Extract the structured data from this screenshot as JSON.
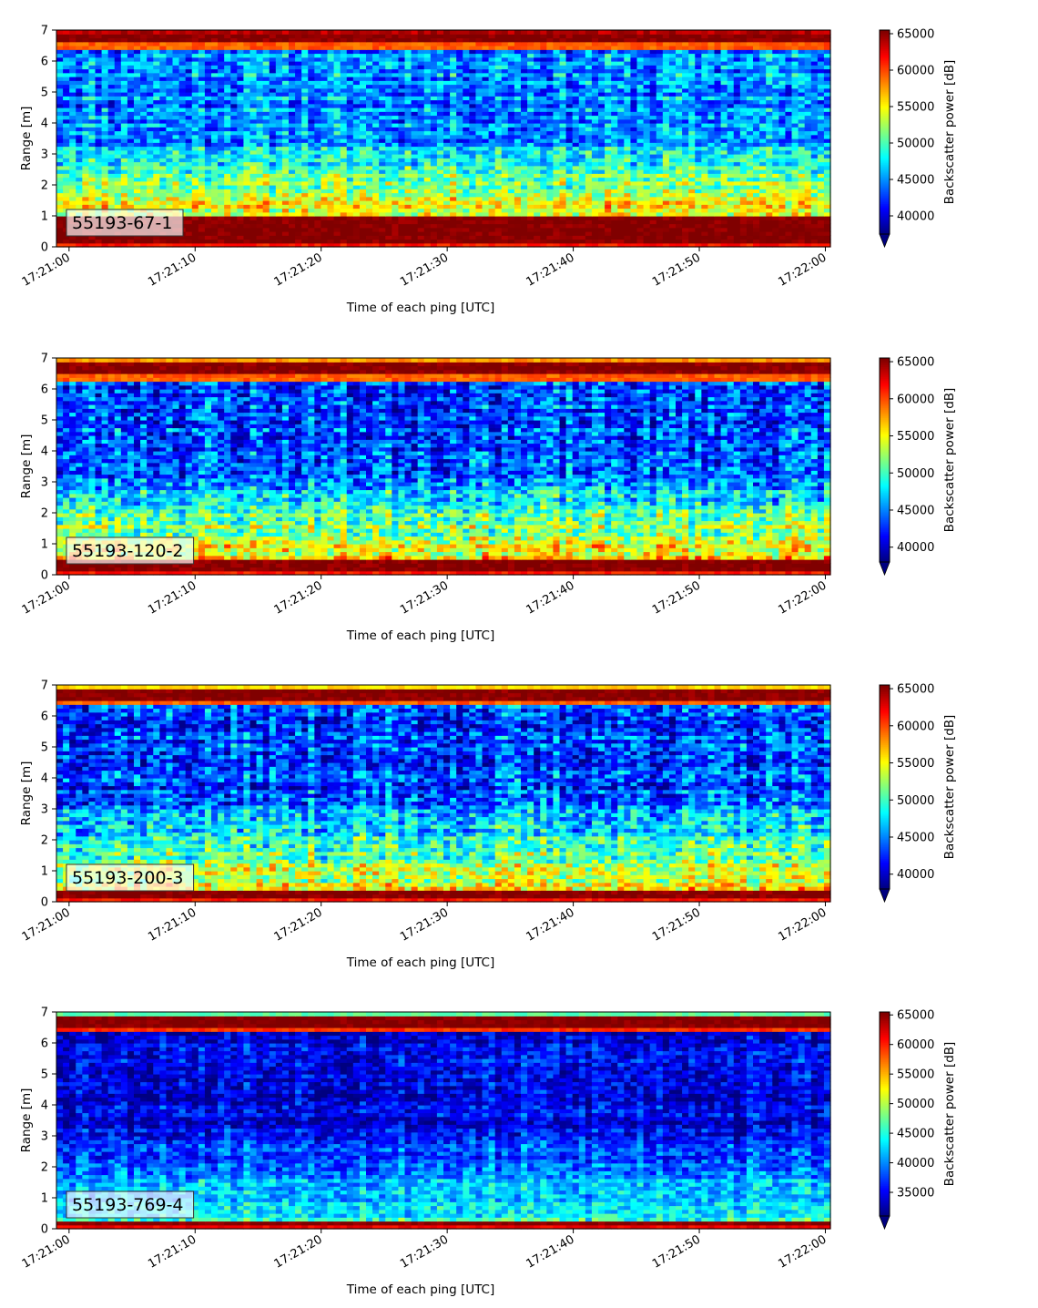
{
  "chart_data": [
    {
      "type": "heatmap",
      "label": "55193-67-1",
      "xlabel": "Time of each ping [UTC]",
      "ylabel": "Range [m]",
      "x_ticks": [
        "17:21:00",
        "17:21:10",
        "17:21:20",
        "17:21:30",
        "17:21:40",
        "17:21:50",
        "17:22:00"
      ],
      "y_ticks": [
        0,
        1,
        2,
        3,
        4,
        5,
        6,
        7
      ],
      "ylim": [
        0,
        7
      ],
      "colorbar": {
        "label": "Backscatter power [dB]",
        "ticks": [
          40000,
          45000,
          50000,
          55000,
          60000,
          65000
        ],
        "range": [
          37500,
          65500
        ],
        "colormap": "jet",
        "extend": "min"
      },
      "profile": {
        "nearHi": 65500,
        "nearEnd": 0.95,
        "midStart": 56000,
        "midEnd": 47000,
        "upperVal": 45000,
        "surfaceStart": 6.4,
        "surfaceVal": 65500,
        "topVal": 64000,
        "noise": 4500,
        "seed": 11
      }
    },
    {
      "type": "heatmap",
      "label": "55193-120-2",
      "xlabel": "Time of each ping [UTC]",
      "ylabel": "Range [m]",
      "x_ticks": [
        "17:21:00",
        "17:21:10",
        "17:21:20",
        "17:21:30",
        "17:21:40",
        "17:21:50",
        "17:22:00"
      ],
      "y_ticks": [
        0,
        1,
        2,
        3,
        4,
        5,
        6,
        7
      ],
      "ylim": [
        0,
        7
      ],
      "colorbar": {
        "label": "Backscatter power [dB]",
        "ticks": [
          40000,
          45000,
          50000,
          55000,
          60000,
          65000
        ],
        "range": [
          38000,
          65500
        ],
        "colormap": "jet",
        "extend": "min"
      },
      "profile": {
        "nearHi": 65500,
        "nearEnd": 0.45,
        "midStart": 56500,
        "midEnd": 45000,
        "upperVal": 43500,
        "surfaceStart": 6.3,
        "surfaceVal": 65500,
        "topVal": 58000,
        "noise": 5000,
        "seed": 23
      }
    },
    {
      "type": "heatmap",
      "label": "55193-200-3",
      "xlabel": "Time of each ping [UTC]",
      "ylabel": "Range [m]",
      "x_ticks": [
        "17:21:00",
        "17:21:10",
        "17:21:20",
        "17:21:30",
        "17:21:40",
        "17:21:50",
        "17:22:00"
      ],
      "y_ticks": [
        0,
        1,
        2,
        3,
        4,
        5,
        6,
        7
      ],
      "ylim": [
        0,
        7
      ],
      "colorbar": {
        "label": "Backscatter power [dB]",
        "ticks": [
          40000,
          45000,
          50000,
          55000,
          60000,
          65000
        ],
        "range": [
          38000,
          65500
        ],
        "colormap": "jet",
        "extend": "min"
      },
      "profile": {
        "nearHi": 65500,
        "nearEnd": 0.35,
        "midStart": 55500,
        "midEnd": 44500,
        "upperVal": 43000,
        "surfaceStart": 6.35,
        "surfaceVal": 65500,
        "topVal": 56000,
        "noise": 5000,
        "seed": 37
      }
    },
    {
      "type": "heatmap",
      "label": "55193-769-4",
      "xlabel": "Time of each ping [UTC]",
      "ylabel": "Range [m]",
      "x_ticks": [
        "17:21:00",
        "17:21:10",
        "17:21:20",
        "17:21:30",
        "17:21:40",
        "17:21:50",
        "17:22:00"
      ],
      "y_ticks": [
        0,
        1,
        2,
        3,
        4,
        5,
        6,
        7
      ],
      "ylim": [
        0,
        7
      ],
      "colorbar": {
        "label": "Backscatter power [dB]",
        "ticks": [
          35000,
          40000,
          45000,
          50000,
          55000,
          60000,
          65000
        ],
        "range": [
          31000,
          65500
        ],
        "colormap": "jet",
        "extend": "min"
      },
      "profile": {
        "nearHi": 65500,
        "nearEnd": 0.22,
        "midStart": 45000,
        "midEnd": 36000,
        "upperVal": 34500,
        "surfaceStart": 6.35,
        "surfaceVal": 65500,
        "topVal": 47000,
        "noise": 4500,
        "seed": 53
      }
    }
  ]
}
